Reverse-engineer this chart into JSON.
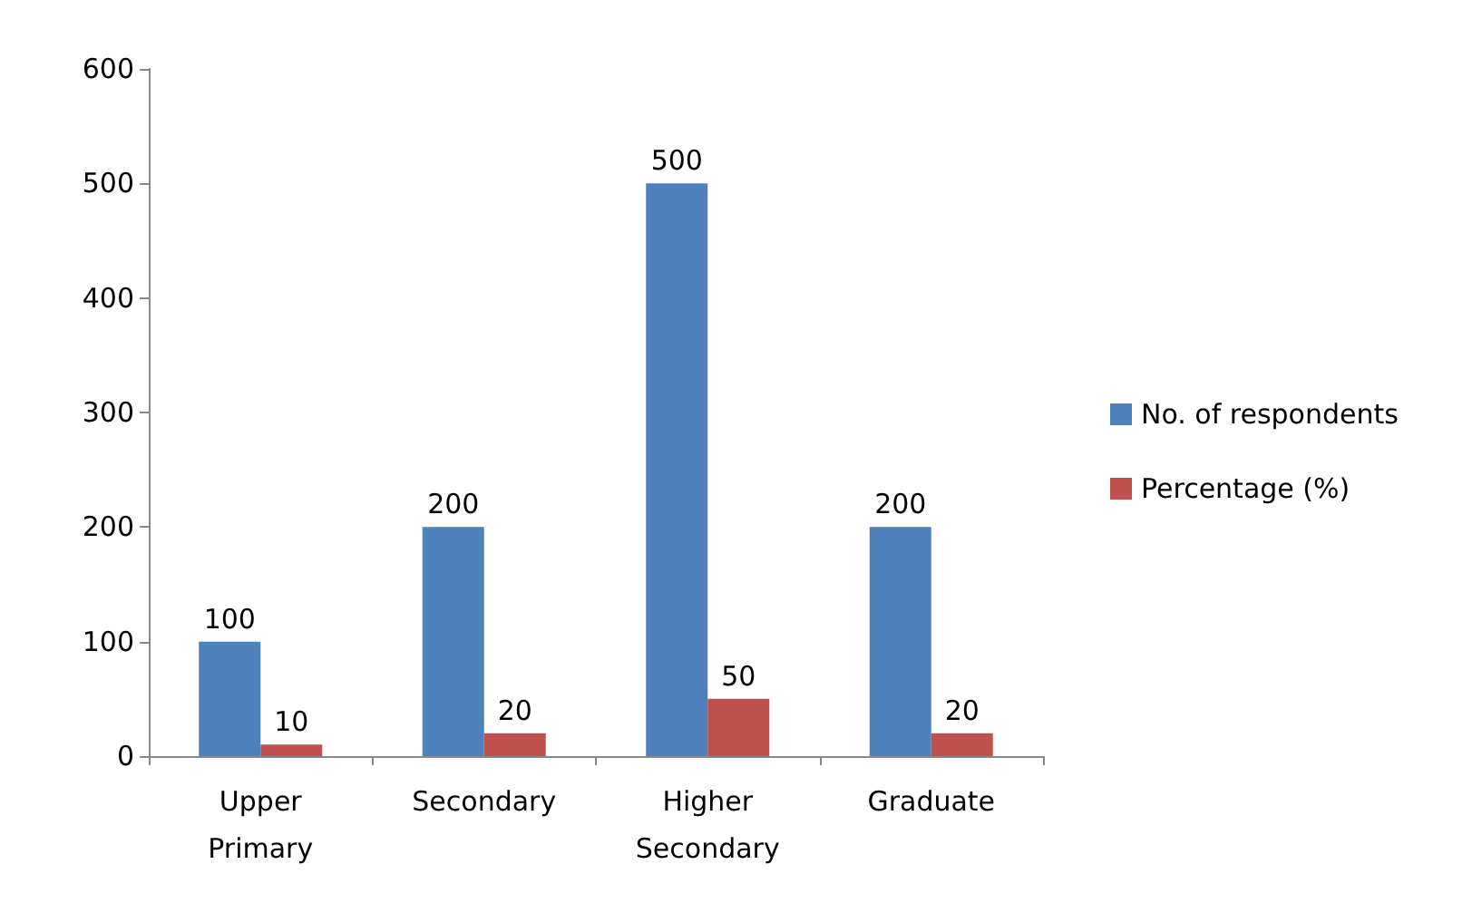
{
  "chart_data": {
    "type": "bar",
    "categories": [
      "Upper\nPrimary",
      "Secondary",
      "Higher\nSecondary",
      "Graduate"
    ],
    "series": [
      {
        "name": "No. of respondents",
        "color": "#4f81bd",
        "values": [
          100,
          200,
          500,
          200
        ]
      },
      {
        "name": "Percentage (%)",
        "color": "#c0504d",
        "values": [
          10,
          20,
          50,
          20
        ]
      }
    ],
    "ylim": [
      0,
      600
    ],
    "yticks": [
      0,
      100,
      200,
      300,
      400,
      500,
      600
    ],
    "grid": false,
    "legend": "right",
    "data_labels": true
  }
}
